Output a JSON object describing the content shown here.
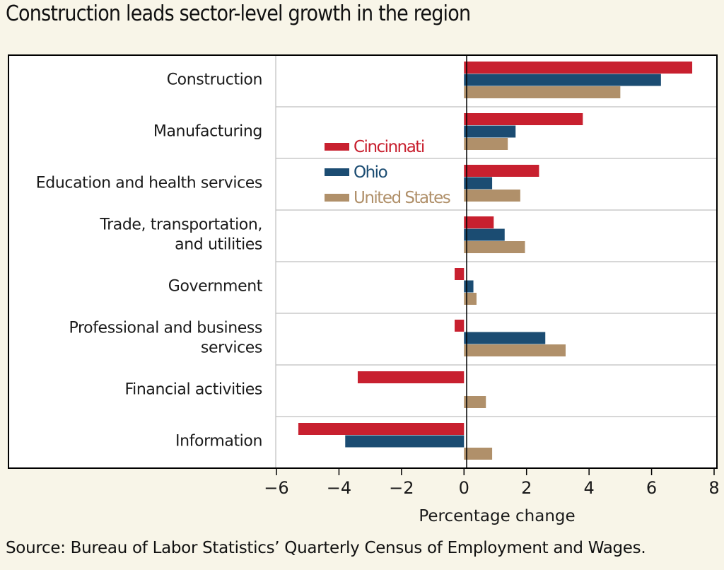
{
  "title": "Construction leads sector-level growth in the region",
  "source": "Source: Bureau of Labor Statistics’ Quarterly Census of Employment and Wages.",
  "colors": {
    "background": "#f8f5e8",
    "plot": "#ffffff",
    "grid": "#bfbfbf",
    "axis": "#000000"
  },
  "chart_data": {
    "type": "bar",
    "orientation": "horizontal",
    "categories": [
      [
        "Construction"
      ],
      [
        "Manufacturing"
      ],
      [
        "Education and health services"
      ],
      [
        "Trade, transportation,",
        "and utilities"
      ],
      [
        "Government"
      ],
      [
        "Professional and business",
        "services"
      ],
      [
        "Financial activities"
      ],
      [
        "Information"
      ]
    ],
    "series": [
      {
        "name": "Cincinnati",
        "color": "#c8202f",
        "values": [
          7.3,
          3.8,
          2.4,
          0.95,
          -0.3,
          -0.3,
          -3.4,
          -5.3
        ]
      },
      {
        "name": "Ohio",
        "color": "#1b4c72",
        "values": [
          6.3,
          1.65,
          0.9,
          1.3,
          0.3,
          2.6,
          0.0,
          -3.8
        ]
      },
      {
        "name": "United States",
        "color": "#b0906a",
        "values": [
          5.0,
          1.4,
          1.8,
          1.95,
          0.4,
          3.25,
          0.7,
          0.9
        ]
      }
    ],
    "xlabel": "Percentage change",
    "xlim": [
      -6,
      8
    ],
    "xticks": [
      "−6",
      "−4",
      "−2",
      "0",
      "2",
      "4",
      "6",
      "8"
    ],
    "grid": "horizontal separators between categories",
    "legend_position": "inside, center-left"
  }
}
